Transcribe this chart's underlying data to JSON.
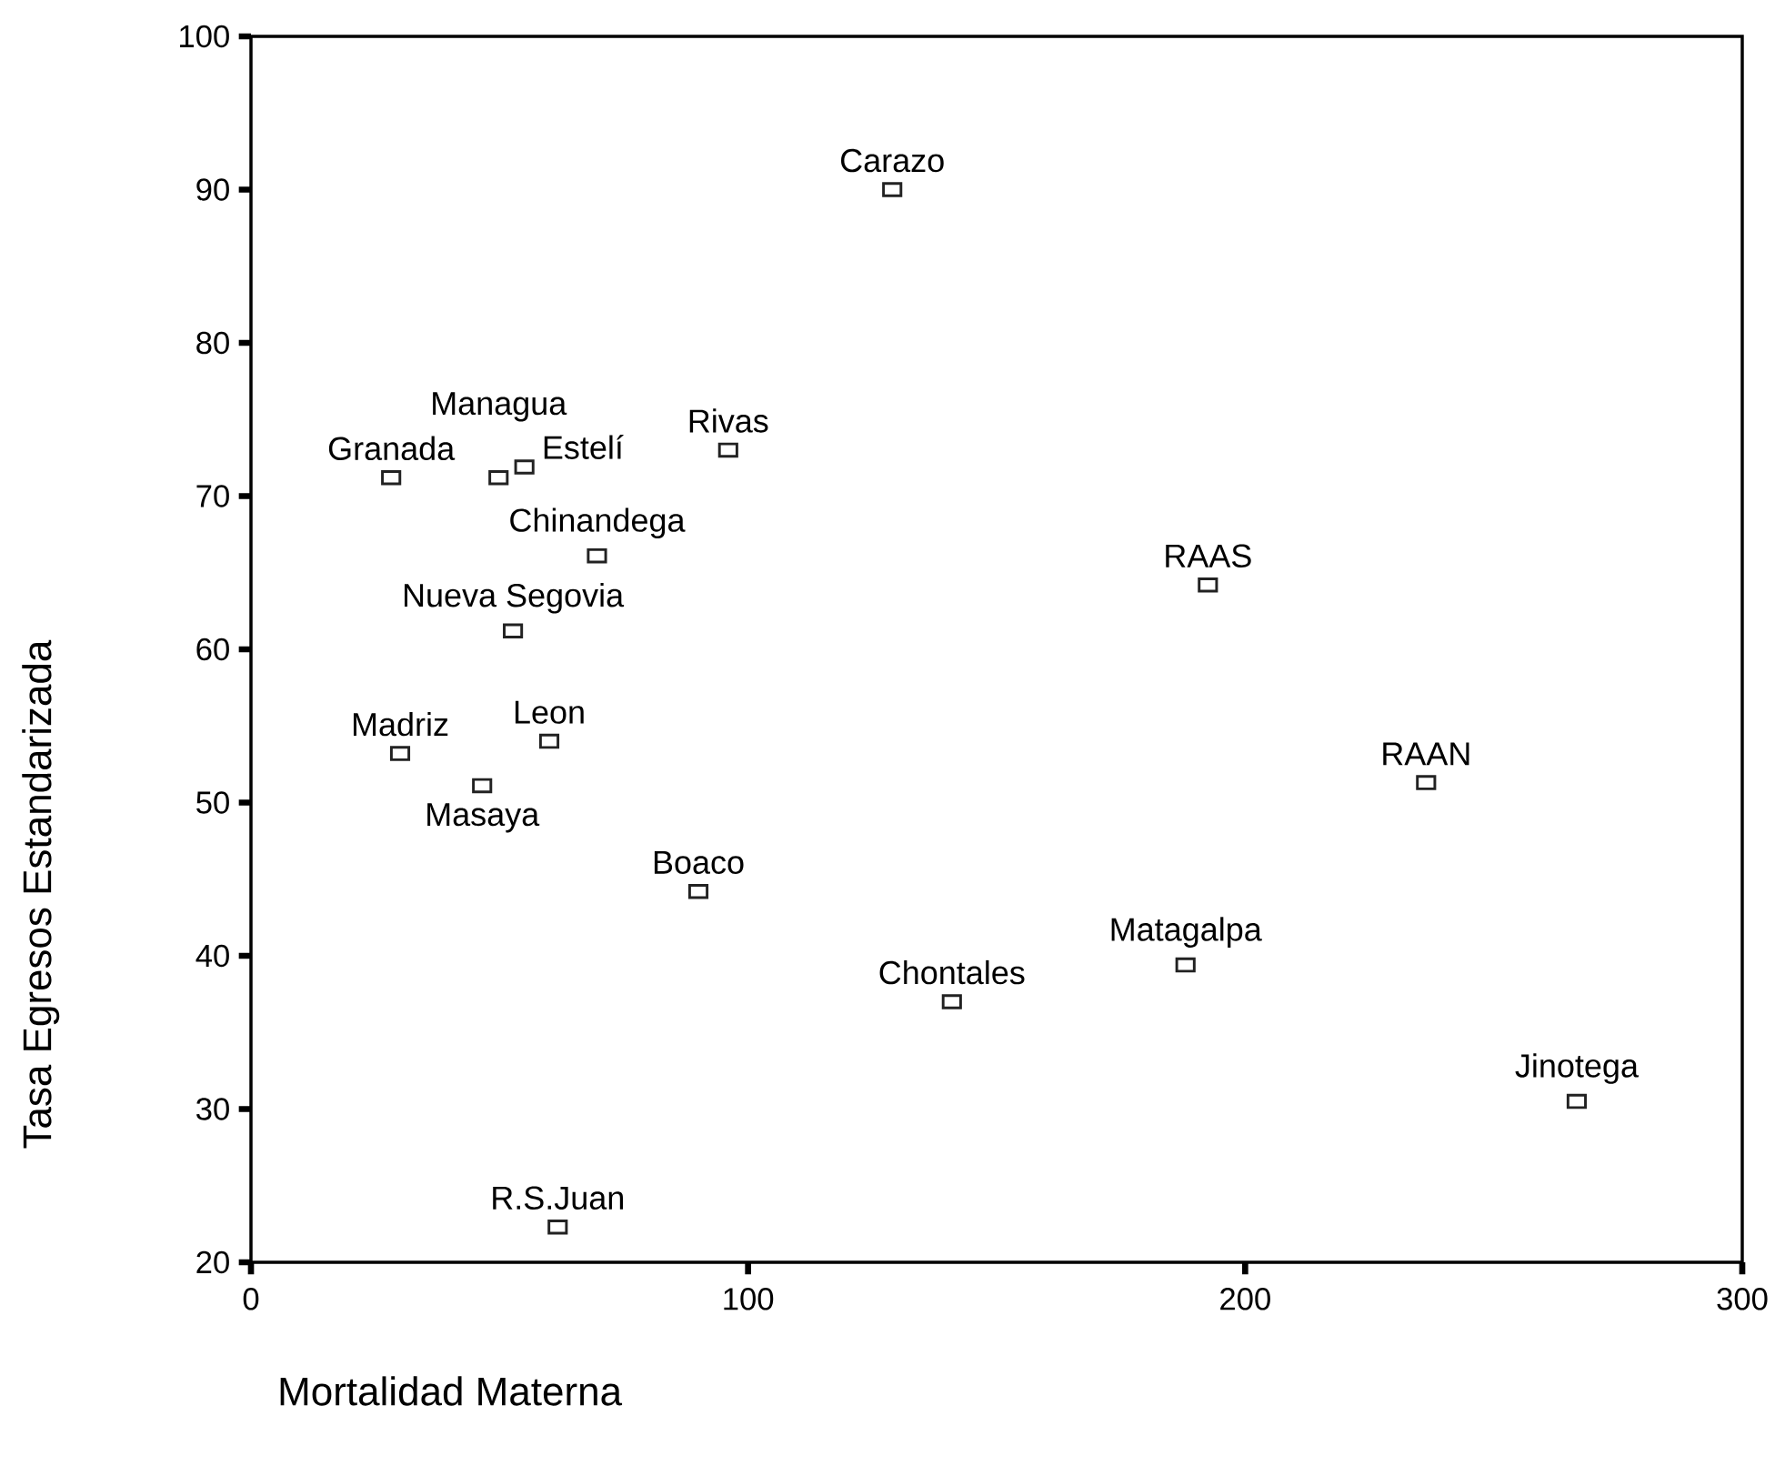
{
  "chart_data": {
    "type": "scatter",
    "xlabel": "Mortalidad Materna",
    "ylabel": "Tasa Egresos Estandarizada",
    "x": [
      129,
      96,
      192.5,
      236.4,
      188,
      141,
      266.7,
      28.2,
      49.8,
      55,
      69.6,
      52.7,
      30,
      60,
      46.5,
      90,
      61.7
    ],
    "values": [
      90,
      73,
      64.2,
      51.3,
      39.4,
      37,
      30.5,
      71.2,
      71.2,
      71.9,
      66.1,
      61.2,
      53.2,
      54,
      51.1,
      44.2,
      22.3
    ],
    "color": "#222222",
    "marker": "square",
    "xlim": [
      0,
      300
    ],
    "ylim": [
      20,
      100
    ],
    "xticks": [
      0,
      100,
      200,
      300
    ],
    "yticks": [
      20,
      30,
      40,
      50,
      60,
      70,
      80,
      90,
      100
    ],
    "annotations": [
      {
        "text": "Carazo",
        "x": 129,
        "y": 90
      },
      {
        "text": "Rivas",
        "x": 96,
        "y": 73
      },
      {
        "text": "RAAS",
        "x": 192.5,
        "y": 64.2
      },
      {
        "text": "RAAN",
        "x": 236.4,
        "y": 51.3
      },
      {
        "text": "Matagalpa",
        "x": 188,
        "y": 39.4
      },
      {
        "text": "Chontales",
        "x": 141,
        "y": 37
      },
      {
        "text": "Jinotega",
        "x": 266.7,
        "y": 30.5
      },
      {
        "text": "Granada",
        "x": 28.2,
        "y": 71.2
      },
      {
        "text": "Managua",
        "x": 49.8,
        "y": 71.2
      },
      {
        "text": "Estelí",
        "x": 55,
        "y": 71.9
      },
      {
        "text": "Chinandega",
        "x": 69.6,
        "y": 66.1
      },
      {
        "text": "Nueva Segovia",
        "x": 52.7,
        "y": 61.2
      },
      {
        "text": "Madriz",
        "x": 30,
        "y": 53.2
      },
      {
        "text": "Leon",
        "x": 60,
        "y": 54
      },
      {
        "text": "Masaya",
        "x": 46.5,
        "y": 51.1
      },
      {
        "text": "Boaco",
        "x": 90,
        "y": 44.2
      },
      {
        "text": "R.S.Juan",
        "x": 61.7,
        "y": 22.3
      }
    ]
  }
}
